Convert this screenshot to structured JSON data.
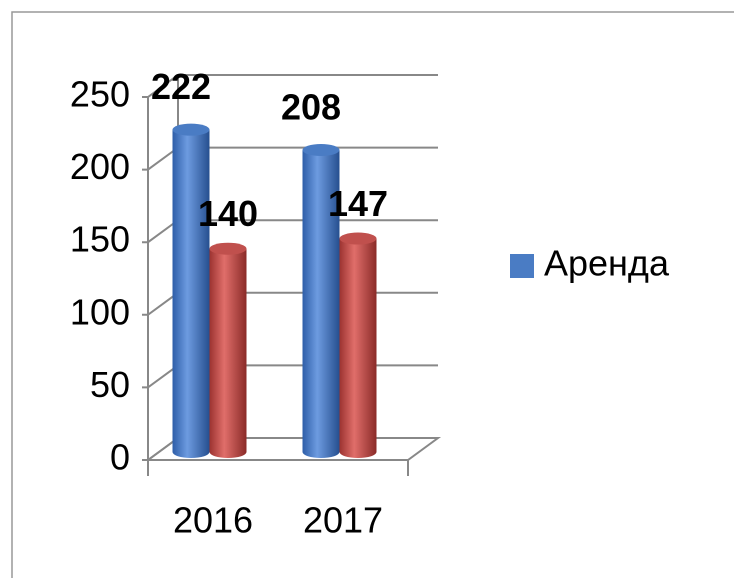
{
  "chart_data": {
    "type": "bar3d",
    "categories": [
      "2016",
      "2017"
    ],
    "series": [
      {
        "name": "Аренда",
        "color": "#4a7cc4",
        "values": [
          222,
          208
        ]
      },
      {
        "color": "#c0504d",
        "values": [
          140,
          147
        ]
      }
    ],
    "ylim": [
      0,
      250
    ],
    "yticks": [
      0,
      50,
      100,
      150,
      200,
      250
    ],
    "grid": true,
    "legend": "right"
  }
}
